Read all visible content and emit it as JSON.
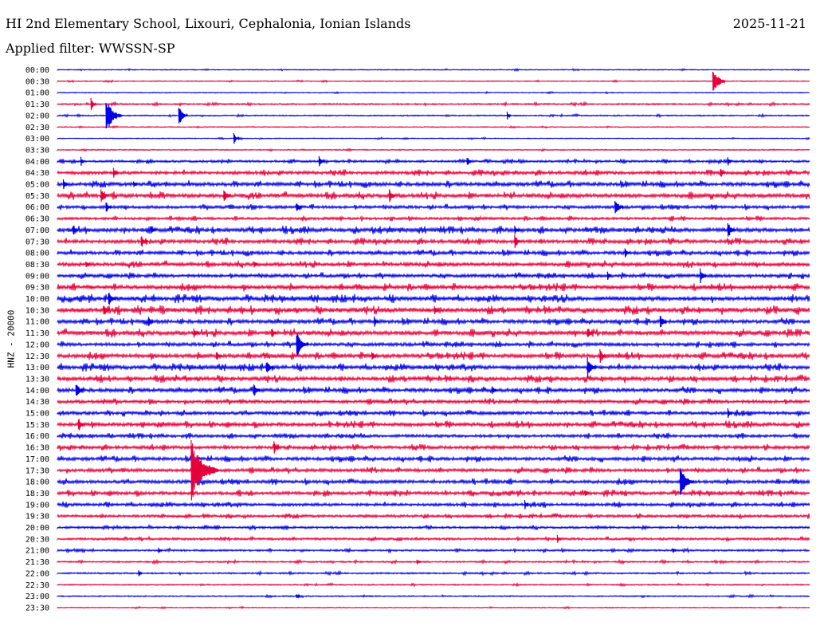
{
  "header": {
    "title": "HI 2nd Elementary School, Lixouri, Cephalonia, Ionian Islands",
    "date": "2025-11-21",
    "filter": "Applied filter: WWSSN-SP"
  },
  "colors": {
    "even_rows": "#0000e6",
    "odd_rows": "#e6003a"
  },
  "chart_data": {
    "type": "line",
    "title": "HI 2nd Elementary School, Lixouri, Cephalonia, Ionian Islands",
    "ylabel": "HNZ - 20000",
    "tick_labels": [
      "00:00",
      "00:30",
      "01:00",
      "01:30",
      "02:00",
      "02:30",
      "03:00",
      "03:30",
      "04:00",
      "04:30",
      "05:00",
      "05:30",
      "06:00",
      "06:30",
      "07:00",
      "07:30",
      "08:00",
      "08:30",
      "09:00",
      "09:30",
      "10:00",
      "10:30",
      "11:00",
      "11:30",
      "12:00",
      "12:30",
      "13:00",
      "13:30",
      "14:00",
      "14:30",
      "15:00",
      "15:30",
      "16:00",
      "16:30",
      "17:00",
      "17:30",
      "18:00",
      "18:30",
      "19:00",
      "19:30",
      "20:00",
      "20:30",
      "21:00",
      "21:30",
      "22:00",
      "22:30",
      "23:00",
      "23:30"
    ],
    "noise_level": [
      0.6,
      0.6,
      0.6,
      1.0,
      0.8,
      0.6,
      0.6,
      0.7,
      1.4,
      2.0,
      2.2,
      2.4,
      1.8,
      1.6,
      2.4,
      2.2,
      2.0,
      2.2,
      2.0,
      2.4,
      2.6,
      2.8,
      2.2,
      2.6,
      2.0,
      2.4,
      2.4,
      2.4,
      2.2,
      2.0,
      2.0,
      2.2,
      1.8,
      2.0,
      2.0,
      2.0,
      2.0,
      2.0,
      1.8,
      1.6,
      1.4,
      1.4,
      1.2,
      1.0,
      1.0,
      0.8,
      0.8,
      0.6
    ],
    "events": [
      {
        "row": 1,
        "minute": 26.2,
        "amplitude": 20
      },
      {
        "row": 3,
        "minute": 1.4,
        "amplitude": 8
      },
      {
        "row": 4,
        "minute": 2.0,
        "amplitude": 25
      },
      {
        "row": 4,
        "minute": 4.9,
        "amplitude": 14
      },
      {
        "row": 4,
        "minute": 18.0,
        "amplitude": 5
      },
      {
        "row": 6,
        "minute": 7.1,
        "amplitude": 8
      },
      {
        "row": 8,
        "minute": 1.0,
        "amplitude": 6
      },
      {
        "row": 8,
        "minute": 10.5,
        "amplitude": 8
      },
      {
        "row": 8,
        "minute": 16.4,
        "amplitude": 7
      },
      {
        "row": 8,
        "minute": 26.8,
        "amplitude": 6
      },
      {
        "row": 9,
        "minute": 2.3,
        "amplitude": 7
      },
      {
        "row": 9,
        "minute": 26.5,
        "amplitude": 8
      },
      {
        "row": 10,
        "minute": 0.3,
        "amplitude": 7
      },
      {
        "row": 10,
        "minute": 3.1,
        "amplitude": 6
      },
      {
        "row": 11,
        "minute": 1.8,
        "amplitude": 12
      },
      {
        "row": 11,
        "minute": 6.7,
        "amplitude": 11
      },
      {
        "row": 11,
        "minute": 13.3,
        "amplitude": 9
      },
      {
        "row": 12,
        "minute": 2.0,
        "amplitude": 9
      },
      {
        "row": 12,
        "minute": 9.6,
        "amplitude": 8
      },
      {
        "row": 12,
        "minute": 22.3,
        "amplitude": 13
      },
      {
        "row": 14,
        "minute": 0.7,
        "amplitude": 7
      },
      {
        "row": 14,
        "minute": 3.8,
        "amplitude": 7
      },
      {
        "row": 14,
        "minute": 18.3,
        "amplitude": 8
      },
      {
        "row": 14,
        "minute": 26.8,
        "amplitude": 12
      },
      {
        "row": 15,
        "minute": 3.4,
        "amplitude": 9
      },
      {
        "row": 15,
        "minute": 18.3,
        "amplitude": 10
      },
      {
        "row": 16,
        "minute": 22.7,
        "amplitude": 8
      },
      {
        "row": 17,
        "minute": 1.2,
        "amplitude": 6
      },
      {
        "row": 17,
        "minute": 7.9,
        "amplitude": 6
      },
      {
        "row": 18,
        "minute": 22.0,
        "amplitude": 6
      },
      {
        "row": 18,
        "minute": 25.7,
        "amplitude": 10
      },
      {
        "row": 20,
        "minute": 2.1,
        "amplitude": 12
      },
      {
        "row": 21,
        "minute": 1.9,
        "amplitude": 10
      },
      {
        "row": 21,
        "minute": 15.1,
        "amplitude": 7
      },
      {
        "row": 22,
        "minute": 3.7,
        "amplitude": 7
      },
      {
        "row": 22,
        "minute": 12.7,
        "amplitude": 7
      },
      {
        "row": 22,
        "minute": 24.1,
        "amplitude": 10
      },
      {
        "row": 23,
        "minute": 5.5,
        "amplitude": 8
      },
      {
        "row": 23,
        "minute": 8.6,
        "amplitude": 8
      },
      {
        "row": 23,
        "minute": 21.2,
        "amplitude": 9
      },
      {
        "row": 24,
        "minute": 9.6,
        "amplitude": 18
      },
      {
        "row": 25,
        "minute": 6.4,
        "amplitude": 8
      },
      {
        "row": 25,
        "minute": 12.6,
        "amplitude": 8
      },
      {
        "row": 25,
        "minute": 21.7,
        "amplitude": 9
      },
      {
        "row": 26,
        "minute": 8.4,
        "amplitude": 11
      },
      {
        "row": 26,
        "minute": 21.2,
        "amplitude": 14
      },
      {
        "row": 28,
        "minute": 0.8,
        "amplitude": 12
      },
      {
        "row": 28,
        "minute": 7.9,
        "amplitude": 9
      },
      {
        "row": 28,
        "minute": 17.4,
        "amplitude": 7
      },
      {
        "row": 30,
        "minute": 26.8,
        "amplitude": 6
      },
      {
        "row": 31,
        "minute": 0.9,
        "amplitude": 10
      },
      {
        "row": 33,
        "minute": 8.7,
        "amplitude": 8
      },
      {
        "row": 35,
        "minute": 5.4,
        "amplitude": 42
      },
      {
        "row": 36,
        "minute": 24.9,
        "amplitude": 22
      },
      {
        "row": 37,
        "minute": 21.1,
        "amplitude": 6
      },
      {
        "row": 38,
        "minute": 18.7,
        "amplitude": 6
      },
      {
        "row": 41,
        "minute": 20.0,
        "amplitude": 5
      },
      {
        "row": 42,
        "minute": 4.1,
        "amplitude": 4
      },
      {
        "row": 42,
        "minute": 24.6,
        "amplitude": 4
      },
      {
        "row": 43,
        "minute": 14.4,
        "amplitude": 4
      },
      {
        "row": 44,
        "minute": 3.3,
        "amplitude": 4
      },
      {
        "row": 46,
        "minute": 9.6,
        "amplitude": 4
      }
    ]
  }
}
